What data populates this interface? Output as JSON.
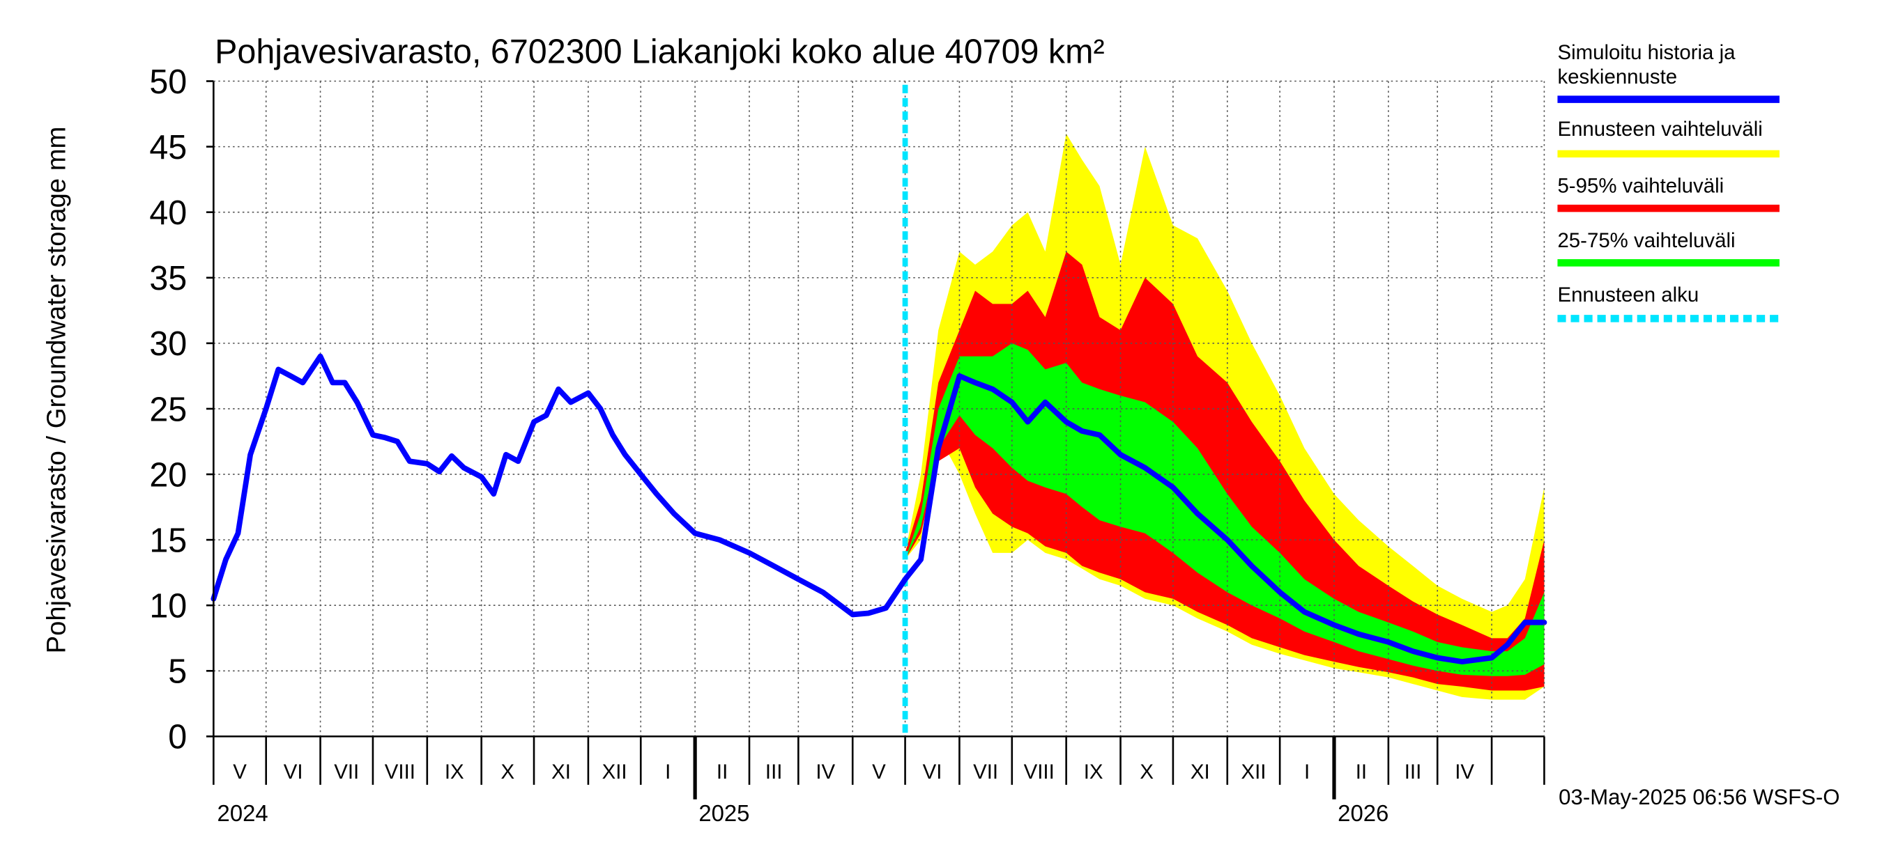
{
  "chart_data": {
    "type": "area",
    "title": "Pohjavesivarasto, 6702300 Liakanjoki koko alue 40709 km²",
    "ylabel": "Pohjavesivarasto / Groundwater storage   mm",
    "ylim": [
      0,
      50
    ],
    "yticks": [
      "0",
      "5",
      "10",
      "15",
      "20",
      "25",
      "30",
      "35",
      "40",
      "45",
      "50"
    ],
    "grid": true,
    "legend_position": "right",
    "x_range": [
      "2024-04-01",
      "2026-05-01"
    ],
    "month_labels": [
      "V",
      "VI",
      "VII",
      "VIII",
      "IX",
      "X",
      "XI",
      "XII",
      "I",
      "II",
      "III",
      "IV",
      "V",
      "VI",
      "VII",
      "VIII",
      "IX",
      "X",
      "XI",
      "XII",
      "I",
      "II",
      "III",
      "IV"
    ],
    "year_labels": [
      "2024",
      "2025",
      "2026"
    ],
    "forecast_start": "2025-05-01",
    "legend": [
      {
        "label": "Simuloitu historia ja",
        "label2": "keskiennuste",
        "color": "#0000ff",
        "style": "solid"
      },
      {
        "label": "Ennusteen vaihteluväli",
        "color": "#ffff00",
        "style": "solid"
      },
      {
        "label": "5-95% vaihteluväli",
        "color": "#ff0000",
        "style": "solid"
      },
      {
        "label": "25-75% vaihteluväli",
        "color": "#00ff00",
        "style": "solid"
      },
      {
        "label": "Ennusteen alku",
        "color": "#00e5ff",
        "style": "dashed"
      }
    ],
    "series": [
      {
        "name": "Simuloitu historia ja keskiennuste",
        "color": "#0000ff",
        "x": [
          "2024-04-01",
          "2024-04-08",
          "2024-04-15",
          "2024-04-22",
          "2024-05-01",
          "2024-05-08",
          "2024-05-15",
          "2024-05-22",
          "2024-06-01",
          "2024-06-08",
          "2024-06-15",
          "2024-06-22",
          "2024-07-01",
          "2024-07-08",
          "2024-07-15",
          "2024-07-22",
          "2024-08-01",
          "2024-08-08",
          "2024-08-15",
          "2024-08-22",
          "2024-09-01",
          "2024-09-08",
          "2024-09-15",
          "2024-09-22",
          "2024-10-01",
          "2024-10-08",
          "2024-10-15",
          "2024-10-22",
          "2024-11-01",
          "2024-11-08",
          "2024-11-15",
          "2024-11-22",
          "2024-12-01",
          "2024-12-10",
          "2024-12-20",
          "2025-01-01",
          "2025-01-15",
          "2025-02-01",
          "2025-02-15",
          "2025-03-01",
          "2025-03-15",
          "2025-03-25",
          "2025-04-01",
          "2025-04-10",
          "2025-04-20",
          "2025-05-01",
          "2025-05-10",
          "2025-05-20",
          "2025-06-01",
          "2025-06-10",
          "2025-06-20",
          "2025-07-01",
          "2025-07-10",
          "2025-07-20",
          "2025-08-01",
          "2025-08-10",
          "2025-08-20",
          "2025-09-01",
          "2025-09-15",
          "2025-10-01",
          "2025-10-15",
          "2025-11-01",
          "2025-11-15",
          "2025-12-01",
          "2025-12-15",
          "2026-01-01",
          "2026-01-15",
          "2026-02-01",
          "2026-02-15",
          "2026-03-01",
          "2026-03-15",
          "2026-04-01",
          "2026-04-10",
          "2026-04-20",
          "2026-05-01"
        ],
        "values": [
          10.5,
          13.5,
          15.5,
          21.5,
          25,
          28,
          27.5,
          27,
          29,
          27,
          27,
          25.5,
          23,
          22.8,
          22.5,
          21,
          20.8,
          20.2,
          21.4,
          20.5,
          19.8,
          18.5,
          21.5,
          21,
          24,
          24.5,
          26.5,
          25.5,
          26.2,
          25,
          23,
          21.5,
          20,
          18.5,
          17,
          15.5,
          15,
          14,
          13,
          12,
          11,
          10,
          9.3,
          9.4,
          9.8,
          12,
          13.5,
          22,
          27.5,
          27,
          26.5,
          25.5,
          24,
          25.5,
          24,
          23.3,
          23,
          21.5,
          20.5,
          19,
          17,
          15,
          13,
          11,
          9.5,
          8.5,
          7.8,
          7.2,
          6.5,
          6,
          5.7,
          6,
          7,
          8.7,
          8.7
        ]
      },
      {
        "name": "Ennusteen vaihteluväli",
        "color": "#ffff00",
        "x": [
          "2025-05-01",
          "2025-05-10",
          "2025-05-20",
          "2025-06-01",
          "2025-06-10",
          "2025-06-20",
          "2025-07-01",
          "2025-07-10",
          "2025-07-20",
          "2025-08-01",
          "2025-08-10",
          "2025-08-20",
          "2025-09-01",
          "2025-09-15",
          "2025-10-01",
          "2025-10-15",
          "2025-11-01",
          "2025-11-15",
          "2025-12-01",
          "2025-12-15",
          "2026-01-01",
          "2026-01-15",
          "2026-02-01",
          "2026-02-15",
          "2026-03-01",
          "2026-03-15",
          "2026-04-01",
          "2026-04-10",
          "2026-04-20",
          "2026-05-01"
        ],
        "upper": [
          14,
          20,
          31,
          37,
          36,
          37,
          39,
          40,
          37,
          46,
          44,
          42,
          36,
          45,
          39,
          38,
          34,
          30,
          26,
          22,
          18.5,
          16.5,
          14.5,
          13,
          11.5,
          10.5,
          9.5,
          10,
          12,
          19
        ],
        "lower": [
          13.5,
          15,
          23,
          20,
          17,
          14,
          14,
          15,
          14,
          13.5,
          12.8,
          12,
          11.5,
          10.5,
          10,
          9,
          8,
          7,
          6.3,
          5.8,
          5.2,
          4.9,
          4.5,
          4,
          3.5,
          3,
          2.8,
          2.8,
          2.8,
          3.8
        ]
      },
      {
        "name": "5-95% vaihteluväli",
        "color": "#ff0000",
        "x": [
          "2025-05-01",
          "2025-05-10",
          "2025-05-20",
          "2025-06-01",
          "2025-06-10",
          "2025-06-20",
          "2025-07-01",
          "2025-07-10",
          "2025-07-20",
          "2025-08-01",
          "2025-08-10",
          "2025-08-20",
          "2025-09-01",
          "2025-09-15",
          "2025-10-01",
          "2025-10-15",
          "2025-11-01",
          "2025-11-15",
          "2025-12-01",
          "2025-12-15",
          "2026-01-01",
          "2026-01-15",
          "2026-02-01",
          "2026-02-15",
          "2026-03-01",
          "2026-03-15",
          "2026-04-01",
          "2026-04-10",
          "2026-04-20",
          "2026-05-01"
        ],
        "upper": [
          14,
          18,
          27,
          31,
          34,
          33,
          33,
          34,
          32,
          37,
          36,
          32,
          31,
          35,
          33,
          29,
          27,
          24,
          21,
          18,
          15,
          13,
          11.5,
          10.3,
          9.3,
          8.5,
          7.5,
          7.5,
          9,
          15
        ],
        "lower": [
          13.5,
          15.5,
          21,
          22,
          19,
          17,
          16,
          15.5,
          14.5,
          14,
          13,
          12.5,
          12,
          11,
          10.5,
          9.5,
          8.5,
          7.5,
          6.8,
          6.2,
          5.7,
          5.3,
          4.9,
          4.5,
          4,
          3.8,
          3.5,
          3.5,
          3.5,
          3.8
        ]
      },
      {
        "name": "25-75% vaihteluväli",
        "color": "#00ff00",
        "x": [
          "2025-05-01",
          "2025-05-10",
          "2025-05-20",
          "2025-06-01",
          "2025-06-10",
          "2025-06-20",
          "2025-07-01",
          "2025-07-10",
          "2025-07-20",
          "2025-08-01",
          "2025-08-10",
          "2025-08-20",
          "2025-09-01",
          "2025-09-15",
          "2025-10-01",
          "2025-10-15",
          "2025-11-01",
          "2025-11-15",
          "2025-12-01",
          "2025-12-15",
          "2026-01-01",
          "2026-01-15",
          "2026-02-01",
          "2026-02-15",
          "2026-03-01",
          "2026-03-15",
          "2026-04-01",
          "2026-04-10",
          "2026-04-20",
          "2026-05-01"
        ],
        "upper": [
          13.5,
          17,
          25,
          29,
          29,
          29,
          30,
          29.5,
          28,
          28.5,
          27,
          26.5,
          26,
          25.5,
          24,
          22,
          18.5,
          16,
          14,
          12,
          10.5,
          9.5,
          8.7,
          8,
          7.2,
          6.8,
          6.5,
          6.5,
          7.5,
          11
        ],
        "lower": [
          13.5,
          16,
          22,
          24.5,
          23,
          22,
          20.5,
          19.5,
          19,
          18.5,
          17.5,
          16.5,
          16,
          15.5,
          14,
          12.5,
          11,
          10,
          9,
          8,
          7.2,
          6.5,
          5.9,
          5.4,
          5,
          4.7,
          4.6,
          4.6,
          4.7,
          5.5
        ]
      }
    ]
  },
  "footer": {
    "timestamp": "03-May-2025 06:56 WSFS-O"
  }
}
